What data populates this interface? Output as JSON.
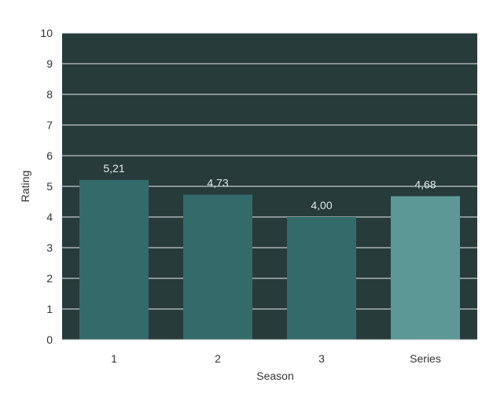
{
  "chart_data": {
    "type": "bar",
    "categories": [
      "1",
      "2",
      "3",
      "Series"
    ],
    "values": [
      5.21,
      4.73,
      4.0,
      4.68
    ],
    "value_labels": [
      "5,21",
      "4,73",
      "4,00",
      "4,68"
    ],
    "xlabel": "Season",
    "ylabel": "Rating",
    "ylim": [
      0,
      10
    ],
    "yticks": [
      "0",
      "1",
      "2",
      "3",
      "4",
      "5",
      "6",
      "7",
      "8",
      "9",
      "10"
    ],
    "grid": true,
    "legend": "none",
    "colors": {
      "plot_background": "#263b3a",
      "gridline": "#e8eeee",
      "bars": [
        "#336b6a",
        "#336b6a",
        "#336b6a",
        "#5c9896"
      ]
    }
  }
}
